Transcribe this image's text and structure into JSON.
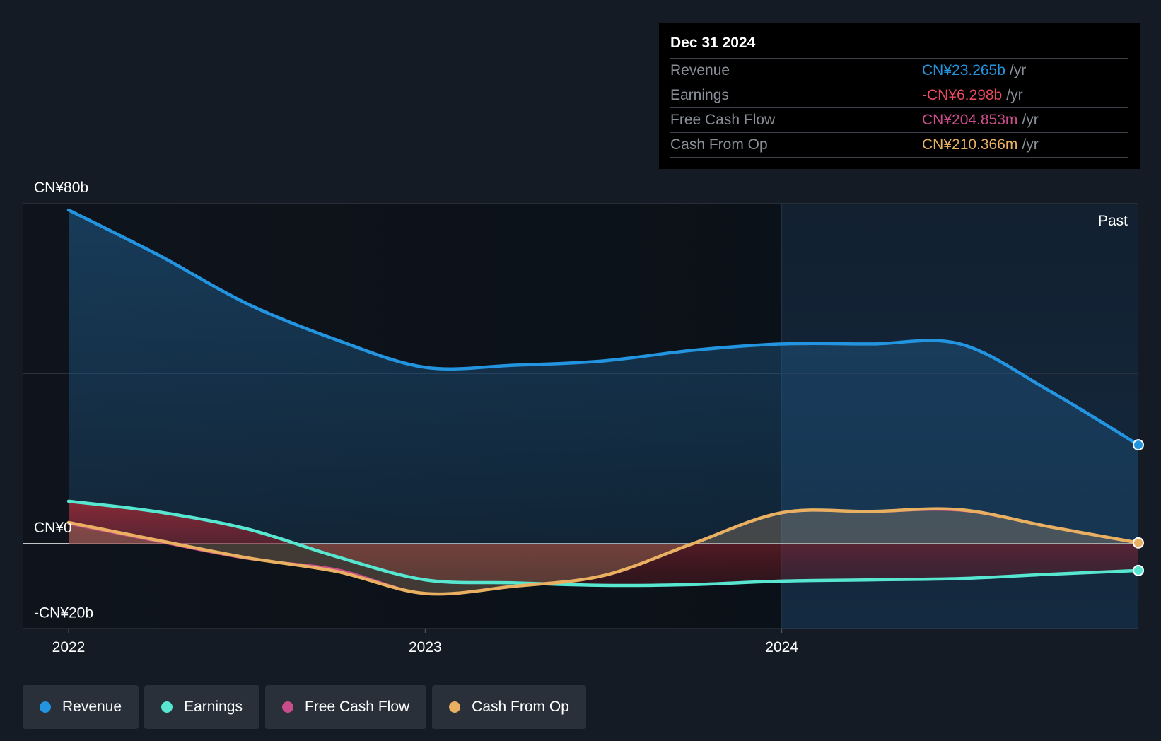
{
  "tooltip": {
    "date": "Dec 31 2024",
    "rows": [
      {
        "label": "Revenue",
        "value": "CN¥23.265b",
        "unit": "/yr",
        "color": "#2394df"
      },
      {
        "label": "Earnings",
        "value": "-CN¥6.298b",
        "unit": "/yr",
        "color": "#e84a5f"
      },
      {
        "label": "Free Cash Flow",
        "value": "CN¥204.853m",
        "unit": "/yr",
        "color": "#c94d8b"
      },
      {
        "label": "Cash From Op",
        "value": "CN¥210.366m",
        "unit": "/yr",
        "color": "#e9b062"
      }
    ]
  },
  "past_label": "Past",
  "legend": [
    {
      "label": "Revenue",
      "color": "#2394df"
    },
    {
      "label": "Earnings",
      "color": "#57e6d0"
    },
    {
      "label": "Free Cash Flow",
      "color": "#c94d8b"
    },
    {
      "label": "Cash From Op",
      "color": "#e9b062"
    }
  ],
  "chart_data": {
    "type": "line",
    "y_unit": "CN¥ billions",
    "ylim": [
      -20,
      80
    ],
    "y_tick_labels": [
      {
        "value": 80,
        "label": "CN¥80b"
      },
      {
        "value": 0,
        "label": "CN¥0"
      },
      {
        "value": -20,
        "label": "-CN¥20b"
      }
    ],
    "x_ticks": [
      2022,
      2023,
      2024
    ],
    "x_range": [
      2021.87,
      2025.0
    ],
    "past_region_start": 2024.0,
    "series": [
      {
        "name": "Revenue",
        "color": "#2394df",
        "fill": true,
        "points": [
          [
            2022.0,
            78.5
          ],
          [
            2022.25,
            68.0
          ],
          [
            2022.5,
            56.5
          ],
          [
            2022.75,
            48.0
          ],
          [
            2023.0,
            41.5
          ],
          [
            2023.25,
            42.0
          ],
          [
            2023.5,
            43.0
          ],
          [
            2023.75,
            45.5
          ],
          [
            2024.0,
            47.0
          ],
          [
            2024.25,
            47.0
          ],
          [
            2024.5,
            47.0
          ],
          [
            2024.75,
            36.0
          ],
          [
            2025.0,
            23.265
          ]
        ]
      },
      {
        "name": "Earnings",
        "color": "#57e6d0",
        "fill": true,
        "points": [
          [
            2022.0,
            10.0
          ],
          [
            2022.25,
            7.5
          ],
          [
            2022.5,
            3.5
          ],
          [
            2022.75,
            -3.0
          ],
          [
            2023.0,
            -8.5
          ],
          [
            2023.25,
            -9.2
          ],
          [
            2023.5,
            -9.8
          ],
          [
            2023.75,
            -9.6
          ],
          [
            2024.0,
            -8.8
          ],
          [
            2024.25,
            -8.5
          ],
          [
            2024.5,
            -8.2
          ],
          [
            2024.75,
            -7.2
          ],
          [
            2025.0,
            -6.298
          ]
        ]
      },
      {
        "name": "Free Cash Flow",
        "color": "#c94d8b",
        "fill": false,
        "points": [
          [
            2022.0,
            4.7
          ],
          [
            2022.25,
            0.5
          ],
          [
            2022.5,
            -3.5
          ],
          [
            2022.75,
            -6.0
          ],
          [
            2023.0,
            -11.7
          ],
          [
            2023.25,
            -10.0
          ],
          [
            2023.5,
            -7.5
          ],
          [
            2023.75,
            0.0
          ],
          [
            2024.0,
            7.2
          ],
          [
            2024.25,
            7.5
          ],
          [
            2024.5,
            7.8
          ],
          [
            2024.75,
            4.0
          ],
          [
            2025.0,
            0.205
          ]
        ]
      },
      {
        "name": "Cash From Op",
        "color": "#e9b062",
        "fill": true,
        "points": [
          [
            2022.0,
            5.0
          ],
          [
            2022.25,
            0.8
          ],
          [
            2022.5,
            -3.3
          ],
          [
            2022.75,
            -6.5
          ],
          [
            2023.0,
            -11.7
          ],
          [
            2023.25,
            -10.0
          ],
          [
            2023.5,
            -7.5
          ],
          [
            2023.75,
            0.0
          ],
          [
            2024.0,
            7.3
          ],
          [
            2024.25,
            7.6
          ],
          [
            2024.5,
            8.0
          ],
          [
            2024.75,
            4.0
          ],
          [
            2025.0,
            0.21
          ]
        ]
      }
    ]
  }
}
